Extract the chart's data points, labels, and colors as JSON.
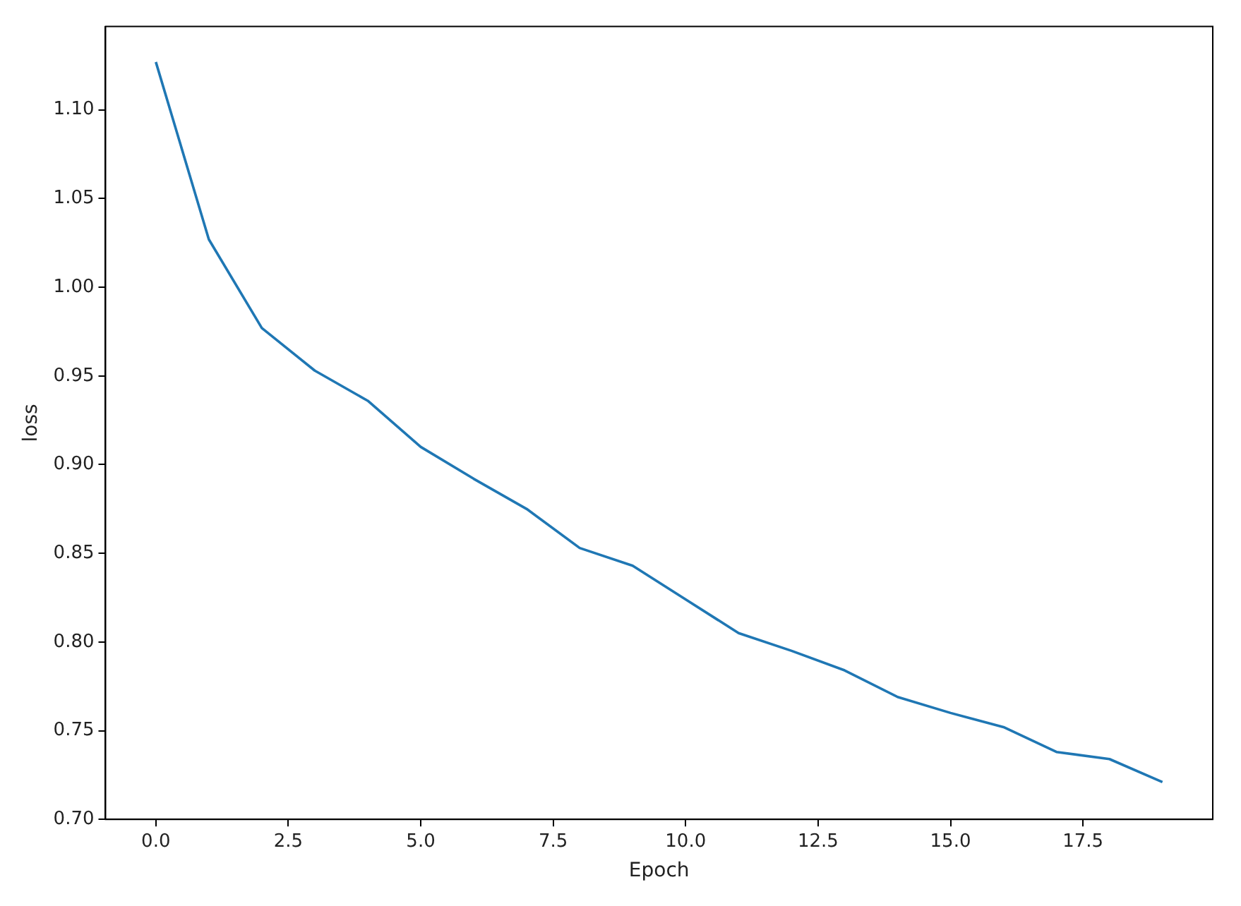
{
  "chart_data": {
    "type": "line",
    "xlabel": "Epoch",
    "ylabel": "loss",
    "x": [
      0,
      1,
      2,
      3,
      4,
      5,
      6,
      7,
      8,
      9,
      10,
      11,
      12,
      13,
      14,
      15,
      16,
      17,
      18,
      19
    ],
    "values": [
      1.127,
      1.027,
      0.977,
      0.953,
      0.936,
      0.91,
      0.892,
      0.875,
      0.853,
      0.843,
      0.824,
      0.805,
      0.795,
      0.784,
      0.769,
      0.76,
      0.752,
      0.738,
      0.734,
      0.721
    ],
    "color": "#1f77b4",
    "xlim": [
      -0.95,
      19.95
    ],
    "ylim": [
      0.7,
      1.147
    ],
    "xticks": [
      {
        "value": 0,
        "label": "0.0"
      },
      {
        "value": 2.5,
        "label": "2.5"
      },
      {
        "value": 5,
        "label": "5.0"
      },
      {
        "value": 7.5,
        "label": "7.5"
      },
      {
        "value": 10,
        "label": "10.0"
      },
      {
        "value": 12.5,
        "label": "12.5"
      },
      {
        "value": 15,
        "label": "15.0"
      },
      {
        "value": 17.5,
        "label": "17.5"
      }
    ],
    "yticks": [
      {
        "value": 0.7,
        "label": "0.70"
      },
      {
        "value": 0.75,
        "label": "0.75"
      },
      {
        "value": 0.8,
        "label": "0.80"
      },
      {
        "value": 0.85,
        "label": "0.85"
      },
      {
        "value": 0.9,
        "label": "0.90"
      },
      {
        "value": 0.95,
        "label": "0.95"
      },
      {
        "value": 1.0,
        "label": "1.00"
      },
      {
        "value": 1.05,
        "label": "1.05"
      },
      {
        "value": 1.1,
        "label": "1.10"
      }
    ],
    "grid": false,
    "legend": false,
    "marker": "none",
    "line_style": "solid"
  }
}
